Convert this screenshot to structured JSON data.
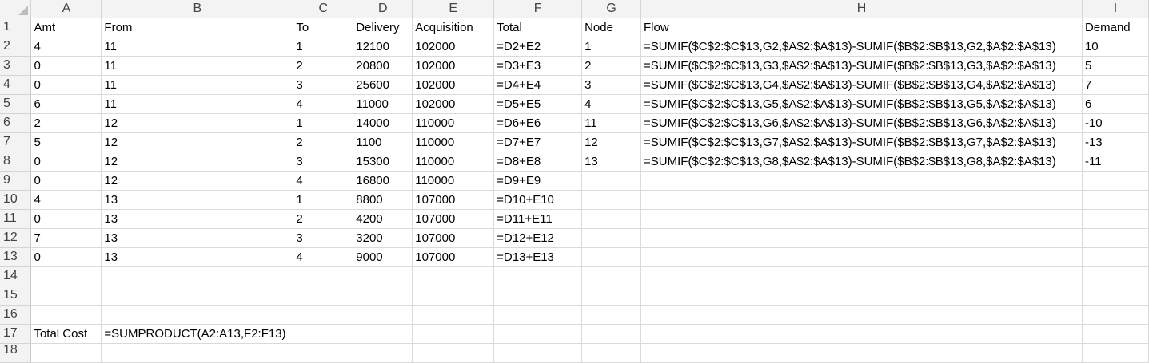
{
  "columns": [
    "A",
    "B",
    "C",
    "D",
    "E",
    "F",
    "G",
    "H",
    "I"
  ],
  "rows": [
    {
      "num": "1",
      "cells": [
        "Amt",
        "From",
        "To",
        "Delivery",
        "Acquisition",
        "Total",
        "Node",
        "Flow",
        "Demand"
      ]
    },
    {
      "num": "2",
      "cells": [
        "4",
        "11",
        "1",
        "12100",
        "102000",
        "=D2+E2",
        "1",
        "=SUMIF($C$2:$C$13,G2,$A$2:$A$13)-SUMIF($B$2:$B$13,G2,$A$2:$A$13)",
        "10"
      ]
    },
    {
      "num": "3",
      "cells": [
        "0",
        "11",
        "2",
        "20800",
        "102000",
        "=D3+E3",
        "2",
        "=SUMIF($C$2:$C$13,G3,$A$2:$A$13)-SUMIF($B$2:$B$13,G3,$A$2:$A$13)",
        "5"
      ]
    },
    {
      "num": "4",
      "cells": [
        "0",
        "11",
        "3",
        "25600",
        "102000",
        "=D4+E4",
        "3",
        "=SUMIF($C$2:$C$13,G4,$A$2:$A$13)-SUMIF($B$2:$B$13,G4,$A$2:$A$13)",
        "7"
      ]
    },
    {
      "num": "5",
      "cells": [
        "6",
        "11",
        "4",
        "11000",
        "102000",
        "=D5+E5",
        "4",
        "=SUMIF($C$2:$C$13,G5,$A$2:$A$13)-SUMIF($B$2:$B$13,G5,$A$2:$A$13)",
        "6"
      ]
    },
    {
      "num": "6",
      "cells": [
        "2",
        "12",
        "1",
        "14000",
        "110000",
        "=D6+E6",
        "11",
        "=SUMIF($C$2:$C$13,G6,$A$2:$A$13)-SUMIF($B$2:$B$13,G6,$A$2:$A$13)",
        "-10"
      ]
    },
    {
      "num": "7",
      "cells": [
        "5",
        "12",
        "2",
        "1100",
        "110000",
        "=D7+E7",
        "12",
        "=SUMIF($C$2:$C$13,G7,$A$2:$A$13)-SUMIF($B$2:$B$13,G7,$A$2:$A$13)",
        "-13"
      ]
    },
    {
      "num": "8",
      "cells": [
        "0",
        "12",
        "3",
        "15300",
        "110000",
        "=D8+E8",
        "13",
        "=SUMIF($C$2:$C$13,G8,$A$2:$A$13)-SUMIF($B$2:$B$13,G8,$A$2:$A$13)",
        "-11"
      ]
    },
    {
      "num": "9",
      "cells": [
        "0",
        "12",
        "4",
        "16800",
        "110000",
        "=D9+E9",
        "",
        "",
        ""
      ]
    },
    {
      "num": "10",
      "cells": [
        "4",
        "13",
        "1",
        "8800",
        "107000",
        "=D10+E10",
        "",
        "",
        ""
      ]
    },
    {
      "num": "11",
      "cells": [
        "0",
        "13",
        "2",
        "4200",
        "107000",
        "=D11+E11",
        "",
        "",
        ""
      ]
    },
    {
      "num": "12",
      "cells": [
        "7",
        "13",
        "3",
        "3200",
        "107000",
        "=D12+E12",
        "",
        "",
        ""
      ]
    },
    {
      "num": "13",
      "cells": [
        "0",
        "13",
        "4",
        "9000",
        "107000",
        "=D13+E13",
        "",
        "",
        ""
      ]
    },
    {
      "num": "14",
      "cells": [
        "",
        "",
        "",
        "",
        "",
        "",
        "",
        "",
        ""
      ]
    },
    {
      "num": "15",
      "cells": [
        "",
        "",
        "",
        "",
        "",
        "",
        "",
        "",
        ""
      ]
    },
    {
      "num": "16",
      "cells": [
        "",
        "",
        "",
        "",
        "",
        "",
        "",
        "",
        ""
      ]
    },
    {
      "num": "17",
      "cells": [
        "Total Cost",
        "=SUMPRODUCT(A2:A13,F2:F13)",
        "",
        "",
        "",
        "",
        "",
        "",
        ""
      ]
    },
    {
      "num": "18",
      "cells": [
        "",
        "",
        "",
        "",
        "",
        "",
        "",
        "",
        ""
      ]
    }
  ]
}
